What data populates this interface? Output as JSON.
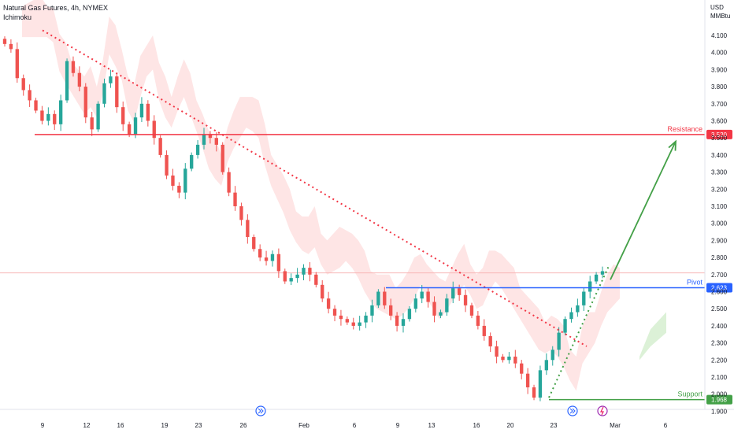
{
  "header": {
    "title": "Natural Gas Futures, 4h, NYMEX",
    "indicator": "Ichimoku"
  },
  "price_axis": {
    "unit_line1": "USD",
    "unit_line2": "MMBtu"
  },
  "chart_data": {
    "type": "candlestick",
    "title": "Natural Gas Futures, 4h, NYMEX",
    "y_unit": "USD/MMBtu",
    "ylim": [
      1.9,
      4.2
    ],
    "y_ticks": [
      "4.100",
      "4.000",
      "3.900",
      "3.800",
      "3.700",
      "3.600",
      "3.500",
      "3.400",
      "3.300",
      "3.200",
      "3.100",
      "3.000",
      "2.900",
      "2.800",
      "2.700",
      "2.600",
      "2.500",
      "2.400",
      "2.300",
      "2.200",
      "2.100",
      "2.000",
      "1.900"
    ],
    "x_ticks": [
      "9",
      "12",
      "16",
      "19",
      "23",
      "26",
      "Feb",
      "6",
      "9",
      "13",
      "16",
      "20",
      "23",
      "Mar",
      "6"
    ],
    "bull_color": "#26a69a",
    "bear_color": "#ef5350",
    "approx_closes": [
      4.05,
      4.02,
      3.85,
      3.78,
      3.72,
      3.66,
      3.6,
      3.64,
      3.58,
      3.72,
      3.95,
      3.88,
      3.8,
      3.62,
      3.55,
      3.7,
      3.82,
      3.86,
      3.68,
      3.58,
      3.52,
      3.62,
      3.7,
      3.6,
      3.5,
      3.4,
      3.28,
      3.22,
      3.18,
      3.32,
      3.4,
      3.46,
      3.52,
      3.5,
      3.46,
      3.3,
      3.18,
      3.1,
      3.02,
      2.92,
      2.85,
      2.8,
      2.78,
      2.82,
      2.72,
      2.66,
      2.68,
      2.7,
      2.74,
      2.7,
      2.64,
      2.56,
      2.5,
      2.46,
      2.44,
      2.42,
      2.4,
      2.42,
      2.46,
      2.52,
      2.6,
      2.52,
      2.46,
      2.4,
      2.44,
      2.5,
      2.56,
      2.6,
      2.54,
      2.46,
      2.48,
      2.56,
      2.62,
      2.58,
      2.52,
      2.46,
      2.4,
      2.34,
      2.28,
      2.22,
      2.2,
      2.22,
      2.18,
      2.12,
      2.04,
      1.98,
      2.14,
      2.2,
      2.26,
      2.36,
      2.44,
      2.48,
      2.52,
      2.6,
      2.66,
      2.7,
      2.72
    ],
    "levels": [
      {
        "name": "Resistance",
        "value": 3.52,
        "label": "3.520",
        "color": "#f23645"
      },
      {
        "name": "Pivot",
        "value": 2.623,
        "label": "2.623",
        "color": "#2962ff"
      },
      {
        "name": "Support",
        "value": 1.968,
        "label": "1.968",
        "color": "#43a047"
      }
    ],
    "trendline": {
      "style": "dotted",
      "color": "#f23645",
      "from": [
        "9",
        4.13
      ],
      "to": [
        "Feb 23",
        2.28
      ]
    },
    "rising_support": {
      "style": "dotted",
      "color": "#43a047",
      "from": [
        "Feb 23",
        1.98
      ],
      "to": [
        "Feb 25",
        2.75
      ]
    },
    "projection_arrow": {
      "color": "#43a047",
      "from_value": 2.67,
      "to_value": 3.48
    },
    "current_price_line": 2.71,
    "ichimoku_cloud_color": "#fddcdc"
  },
  "markers": [
    "news-icon",
    "news-icon",
    "flash-icon"
  ]
}
